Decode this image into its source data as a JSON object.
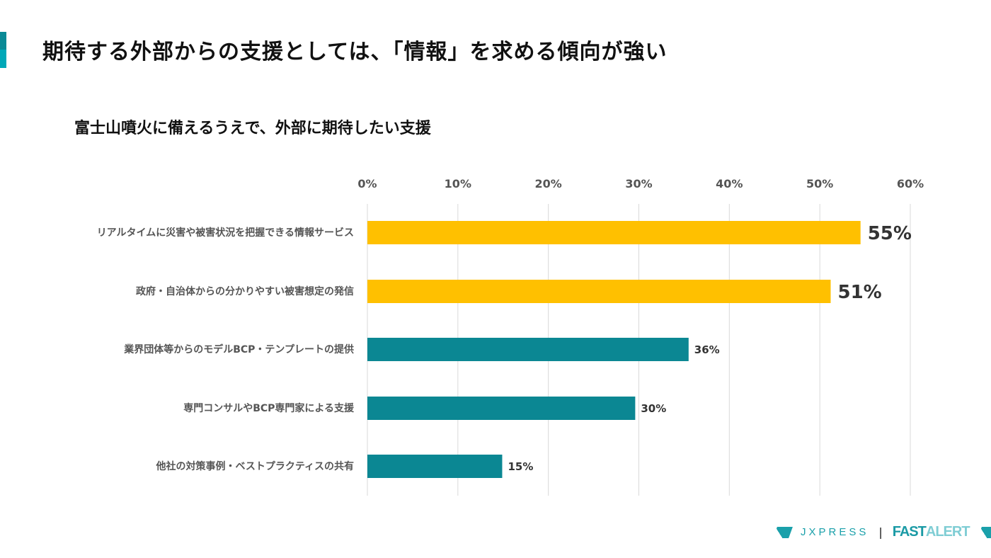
{
  "header": {
    "title": "期待する外部からの支援としては、「情報」を求める傾向が強い"
  },
  "chart_data": {
    "type": "bar",
    "orientation": "horizontal",
    "title": "富士山噴火に備えるうえで、外部に期待したい支援",
    "categories": [
      "リアルタイムに災害や被害状況を把握できる情報サービス",
      "政府・自治体からの分かりやすい被害想定の発信",
      "業界団体等からのモデルBCP・テンプレートの提供",
      "専門コンサルやBCP専門家による支援",
      "他社の対策事例・ベストプラクティスの共有"
    ],
    "values": [
      54.5,
      51.2,
      35.5,
      29.6,
      14.9
    ],
    "labels": [
      "55%",
      "51%",
      "36%",
      "30%",
      "15%"
    ],
    "highlight": [
      true,
      true,
      false,
      false,
      false
    ],
    "xlim": [
      0,
      60
    ],
    "xticks": [
      "0%",
      "10%",
      "20%",
      "30%",
      "40%",
      "50%",
      "60%"
    ],
    "grid": true,
    "colors": {
      "highlight": "#FFC000",
      "normal": "#0B8793",
      "grid": "#d9d9d9"
    }
  },
  "footer": {
    "logo1": "JXPRESS",
    "separator": "|",
    "logo2_a": "FAST",
    "logo2_b": "ALERT"
  }
}
